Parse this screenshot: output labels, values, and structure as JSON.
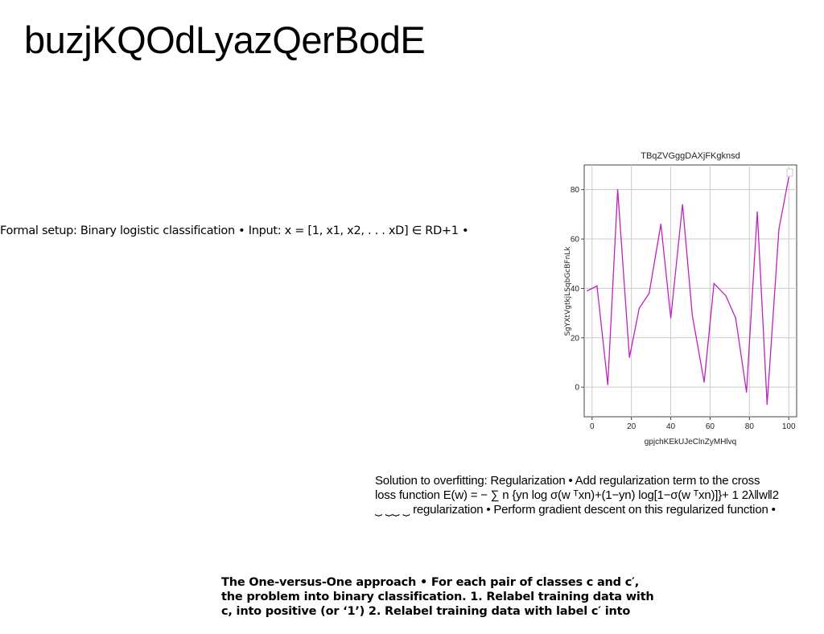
{
  "slide": {
    "title": "buzjKQOdLyazQerBodE"
  },
  "text_blocks": {
    "setup": "Formal setup: Binary logistic classification • Input: x = [1, x1, x2, . . . xD] ∈ RD+1 •",
    "regularization_lines": [
      "Solution to overfitting: Regularization • Add regularization term to the cross",
      "loss function E(w) = − ∑ n {yn log σ(w ᵀxn)+(1−yn) log[1−σ(w ᵀxn)]}+ 1 2λ‖w‖2",
      "⏟ ⏟⏟ ⏟ regularization • Perform gradient descent on this regularized function •"
    ],
    "ovo_lines": [
      "The One-versus-One approach • For each pair of classes c and c′,",
      "the problem into binary classification. 1. Relabel training data with",
      "c, into positive (or ‘1’) 2. Relabel training data with label c′ into"
    ]
  },
  "chart_data": {
    "type": "line",
    "title": "TBqZVGggDAXjFKgknsd",
    "xlabel": "gpjchKEkUJeClnZyMHlvq",
    "ylabel": "SgYXtVgtkjLSqbGcBFnLk",
    "xlim": [
      -4,
      104
    ],
    "ylim": [
      -12,
      90
    ],
    "xticks": [
      0,
      20,
      40,
      60,
      80,
      100
    ],
    "yticks": [
      0,
      20,
      40,
      60,
      80
    ],
    "grid": true,
    "legend": "top-right",
    "line_color": "#c020c0",
    "series": [
      {
        "x": [
          -2.5,
          2.5,
          8,
          13,
          19,
          24,
          29,
          35,
          40,
          46,
          51,
          57,
          62,
          68,
          73,
          78.5,
          84,
          89,
          95,
          100
        ],
        "values": [
          39,
          41,
          1,
          80,
          12,
          32,
          38,
          66,
          28,
          74,
          29,
          2,
          42,
          37,
          28,
          -2,
          71,
          -7,
          64,
          85
        ]
      }
    ]
  }
}
